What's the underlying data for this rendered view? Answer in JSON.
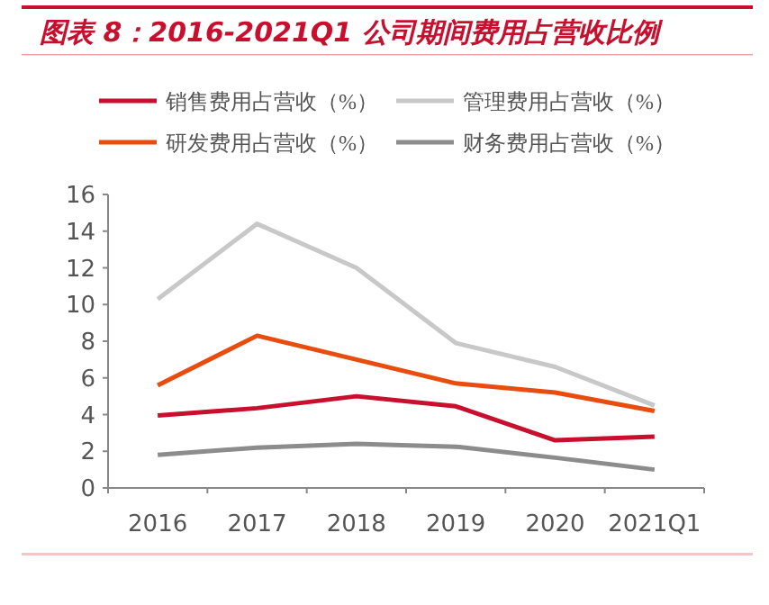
{
  "chart_data": {
    "type": "line",
    "title": "图表 8：2016-2021Q1 公司期间费用占营收比例",
    "categories": [
      "2016",
      "2017",
      "2018",
      "2019",
      "2020",
      "2021Q1"
    ],
    "series": [
      {
        "name": "销售费用占营收（%）",
        "color": "#c8102e",
        "values": [
          3.95,
          4.35,
          5.0,
          4.45,
          2.6,
          2.8
        ]
      },
      {
        "name": "管理费用占营收（%）",
        "color": "#c8c8c8",
        "values": [
          10.3,
          14.4,
          12.0,
          7.9,
          6.6,
          4.5
        ]
      },
      {
        "name": "研发费用占营收（%）",
        "color": "#e84c0e",
        "values": [
          5.6,
          8.3,
          7.0,
          5.7,
          5.2,
          4.2
        ]
      },
      {
        "name": "财务费用占营收（%）",
        "color": "#8c8c8c",
        "values": [
          1.8,
          2.2,
          2.4,
          2.25,
          1.65,
          1.0
        ]
      }
    ],
    "ylim": [
      0,
      16
    ],
    "yticks": [
      0,
      2,
      4,
      6,
      8,
      10,
      12,
      14,
      16
    ],
    "grid": false,
    "legend": "top",
    "marker": "none",
    "line_style": "solid"
  }
}
